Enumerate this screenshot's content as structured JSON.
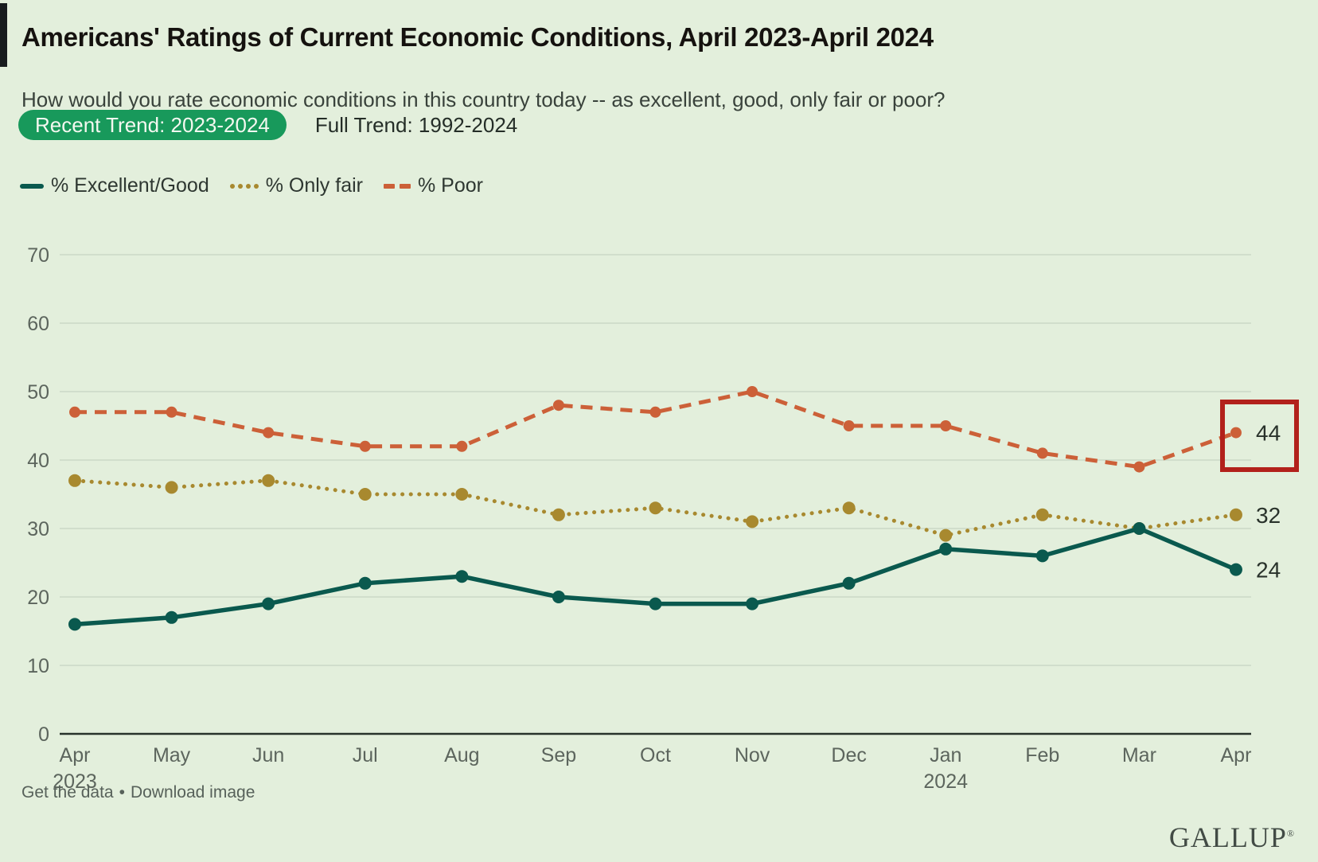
{
  "header": {
    "title": "Americans' Ratings of Current Economic Conditions, April 2023-April 2024",
    "subtitle": "How would you rate economic conditions in this country today -- as excellent, good, only fair or poor?"
  },
  "tabs": {
    "recent_label": "Recent Trend: 2023-2024",
    "full_label": "Full Trend: 1992-2024",
    "active": "recent",
    "active_bg": "#18995b"
  },
  "chart_data": {
    "type": "line",
    "title": "Americans' Ratings of Current Economic Conditions, April 2023-April 2024",
    "xlabel": "",
    "ylabel": "",
    "ylim": [
      0,
      70
    ],
    "yticks": [
      0,
      10,
      20,
      30,
      40,
      50,
      60,
      70
    ],
    "grid": true,
    "legend_position": "top-left",
    "categories": [
      {
        "m": "Apr",
        "y": "2023"
      },
      {
        "m": "May"
      },
      {
        "m": "Jun"
      },
      {
        "m": "Jul"
      },
      {
        "m": "Aug"
      },
      {
        "m": "Sep"
      },
      {
        "m": "Oct"
      },
      {
        "m": "Nov"
      },
      {
        "m": "Dec"
      },
      {
        "m": "Jan",
        "y": "2024"
      },
      {
        "m": "Feb"
      },
      {
        "m": "Mar"
      },
      {
        "m": "Apr"
      }
    ],
    "series": [
      {
        "name": "% Excellent/Good",
        "color": "#0a594e",
        "line_style": "solid",
        "values": [
          16,
          17,
          19,
          22,
          23,
          20,
          19,
          19,
          22,
          27,
          26,
          30,
          24
        ],
        "end_label": "24"
      },
      {
        "name": "% Only fair",
        "color": "#a8892f",
        "line_style": "dotted",
        "values": [
          37,
          36,
          37,
          35,
          35,
          32,
          33,
          31,
          33,
          29,
          32,
          30,
          32
        ],
        "end_label": "32"
      },
      {
        "name": "% Poor",
        "color": "#cc6038",
        "line_style": "dashed",
        "values": [
          47,
          47,
          44,
          42,
          42,
          48,
          47,
          50,
          45,
          45,
          41,
          39,
          44
        ],
        "end_label": "44"
      }
    ],
    "highlight": {
      "series": "% Poor",
      "category": "Apr 2024",
      "value": 44,
      "box_color": "#b2211b"
    }
  },
  "footer": {
    "get_data_label": "Get the data",
    "separator": "•",
    "download_label": "Download image",
    "brand": "GALLUP",
    "brand_mark": "®"
  }
}
